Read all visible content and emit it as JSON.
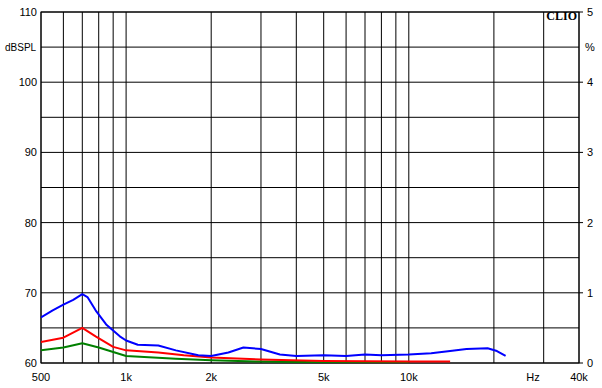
{
  "chart_data": {
    "type": "line",
    "title": "CLIO",
    "x_label": "Hz",
    "y_label": "dBSPL",
    "y2_label": "%",
    "log": "x",
    "grid": true,
    "xlim": [
      500,
      40000
    ],
    "xticks": [
      {
        "value": 500,
        "label": "500"
      },
      {
        "value": 1000,
        "label": "1k"
      },
      {
        "value": 2000,
        "label": "2k"
      },
      {
        "value": 5000,
        "label": "5k"
      },
      {
        "value": 10000,
        "label": "10k"
      },
      {
        "value": 40000,
        "label": "40k"
      }
    ],
    "x_grid": [
      600,
      700,
      800,
      900,
      3000,
      4000,
      6000,
      7000,
      8000,
      9000,
      20000,
      30000
    ],
    "ylim": [
      60,
      110
    ],
    "yticks": [
      60,
      70,
      80,
      90,
      100,
      110
    ],
    "y_grid": [
      65,
      75,
      85,
      95,
      105
    ],
    "y2lim": [
      0,
      5
    ],
    "y2ticks": [
      0,
      1,
      2,
      3,
      4,
      5
    ],
    "series": [
      {
        "color": "#0000ff",
        "axis": "y2",
        "x": [
          500,
          550,
          600,
          650,
          700,
          730,
          780,
          850,
          950,
          1000,
          1100,
          1300,
          1500,
          1800,
          2000,
          2300,
          2600,
          3000,
          3500,
          4000,
          5000,
          6000,
          7000,
          8000,
          10000,
          12000,
          14000,
          16000,
          19000,
          20500,
          22000
        ],
        "values": [
          0.65,
          0.75,
          0.83,
          0.9,
          0.98,
          0.94,
          0.75,
          0.55,
          0.38,
          0.32,
          0.26,
          0.25,
          0.18,
          0.11,
          0.1,
          0.15,
          0.22,
          0.2,
          0.12,
          0.1,
          0.11,
          0.1,
          0.12,
          0.11,
          0.12,
          0.14,
          0.17,
          0.2,
          0.21,
          0.17,
          0.1
        ]
      },
      {
        "color": "#ff0000",
        "axis": "y2",
        "x": [
          500,
          600,
          700,
          780,
          900,
          1000,
          1300,
          1600,
          2000,
          3000,
          5000,
          10000,
          14000
        ],
        "values": [
          0.3,
          0.36,
          0.5,
          0.38,
          0.23,
          0.18,
          0.15,
          0.11,
          0.08,
          0.05,
          0.03,
          0.02,
          0.02
        ]
      },
      {
        "color": "#008000",
        "axis": "y2",
        "x": [
          500,
          600,
          700,
          800,
          1000,
          1500,
          2000,
          3000,
          5000,
          8000,
          10000
        ],
        "values": [
          0.18,
          0.22,
          0.28,
          0.22,
          0.1,
          0.06,
          0.04,
          0.02,
          0.01,
          0.01,
          0.01
        ]
      }
    ]
  }
}
